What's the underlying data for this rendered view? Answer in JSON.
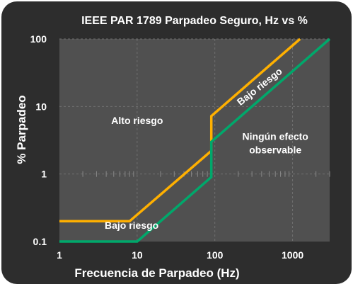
{
  "chart_data": {
    "type": "line",
    "title": "IEEE PAR 1789 Parpadeo Seguro, Hz vs %",
    "xlabel": "Frecuencia de Parpadeo (Hz)",
    "ylabel": "% Parpadeo",
    "x_scale": "log",
    "y_scale": "log",
    "xlim": [
      1,
      3000
    ],
    "ylim": [
      0.1,
      100
    ],
    "x_ticks": [
      1,
      10,
      100,
      1000
    ],
    "x_tick_labels": [
      "1",
      "10",
      "100",
      "1000"
    ],
    "y_ticks": [
      0.1,
      1,
      10,
      100
    ],
    "y_tick_labels": [
      "0.1",
      "1",
      "10",
      "100"
    ],
    "series": [
      {
        "color": "#FFB000",
        "x": [
          1,
          8,
          90,
          90,
          1250
        ],
        "y": [
          0.2,
          0.2,
          2.2,
          7.2,
          100
        ]
      },
      {
        "color": "#00A86B",
        "x": [
          1,
          10,
          90,
          90,
          3000
        ],
        "y": [
          0.1,
          0.1,
          0.9,
          3.0,
          100
        ]
      }
    ],
    "annotations": [
      {
        "text": "Alto riesgo",
        "x": 10,
        "y": 5.5,
        "rotate": 0,
        "lines": [
          "Alto riesgo"
        ]
      },
      {
        "text": "Bajo riesgo",
        "x": 400,
        "y": 18,
        "rotate": -38,
        "lines": [
          "Bajo riesgo"
        ]
      },
      {
        "text": "Bajo riesgo",
        "x": 8.5,
        "y": 0.155,
        "rotate": 0,
        "lines": [
          "Bajo riesgo"
        ]
      },
      {
        "text": "Ningún efecto observable",
        "x": 600,
        "y": 3.2,
        "rotate": 0,
        "lines": [
          "Ningún efecto",
          "observable"
        ]
      }
    ],
    "grid": true
  },
  "colors": {
    "background": "#2d2d2d",
    "plot_area": "#505050",
    "plot_border": "#3a3a3a",
    "grid_dashed": "#707070",
    "text": "#ffffff"
  }
}
